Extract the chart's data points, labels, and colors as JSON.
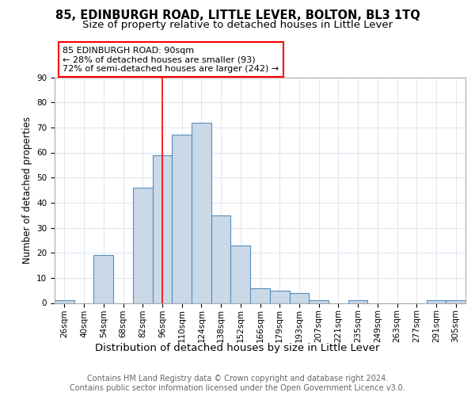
{
  "title": "85, EDINBURGH ROAD, LITTLE LEVER, BOLTON, BL3 1TQ",
  "subtitle": "Size of property relative to detached houses in Little Lever",
  "xlabel": "Distribution of detached houses by size in Little Lever",
  "ylabel": "Number of detached properties",
  "bar_labels": [
    "26sqm",
    "40sqm",
    "54sqm",
    "68sqm",
    "82sqm",
    "96sqm",
    "110sqm",
    "124sqm",
    "138sqm",
    "152sqm",
    "166sqm",
    "179sqm",
    "193sqm",
    "207sqm",
    "221sqm",
    "235sqm",
    "249sqm",
    "263sqm",
    "277sqm",
    "291sqm",
    "305sqm"
  ],
  "bar_values": [
    1,
    0,
    19,
    0,
    46,
    59,
    67,
    72,
    35,
    23,
    6,
    5,
    4,
    1,
    0,
    1,
    0,
    0,
    0,
    1,
    1
  ],
  "bar_color": "#c9d9e8",
  "bar_edgecolor": "#5b8db8",
  "bar_linewidth": 0.8,
  "vline_x": 5.0,
  "vline_color": "red",
  "vline_linewidth": 1.2,
  "annotation_text": "85 EDINBURGH ROAD: 90sqm\n← 28% of detached houses are smaller (93)\n72% of semi-detached houses are larger (242) →",
  "annotation_box_color": "white",
  "annotation_box_edgecolor": "red",
  "ylim": [
    0,
    90
  ],
  "yticks": [
    0,
    10,
    20,
    30,
    40,
    50,
    60,
    70,
    80,
    90
  ],
  "footer_text": "Contains HM Land Registry data © Crown copyright and database right 2024.\nContains public sector information licensed under the Open Government Licence v3.0.",
  "title_fontsize": 10.5,
  "subtitle_fontsize": 9.5,
  "xlabel_fontsize": 9.5,
  "ylabel_fontsize": 8.5,
  "tick_fontsize": 7.5,
  "annot_fontsize": 8,
  "footer_fontsize": 7,
  "background_color": "white",
  "grid_color": "#dce6f0"
}
